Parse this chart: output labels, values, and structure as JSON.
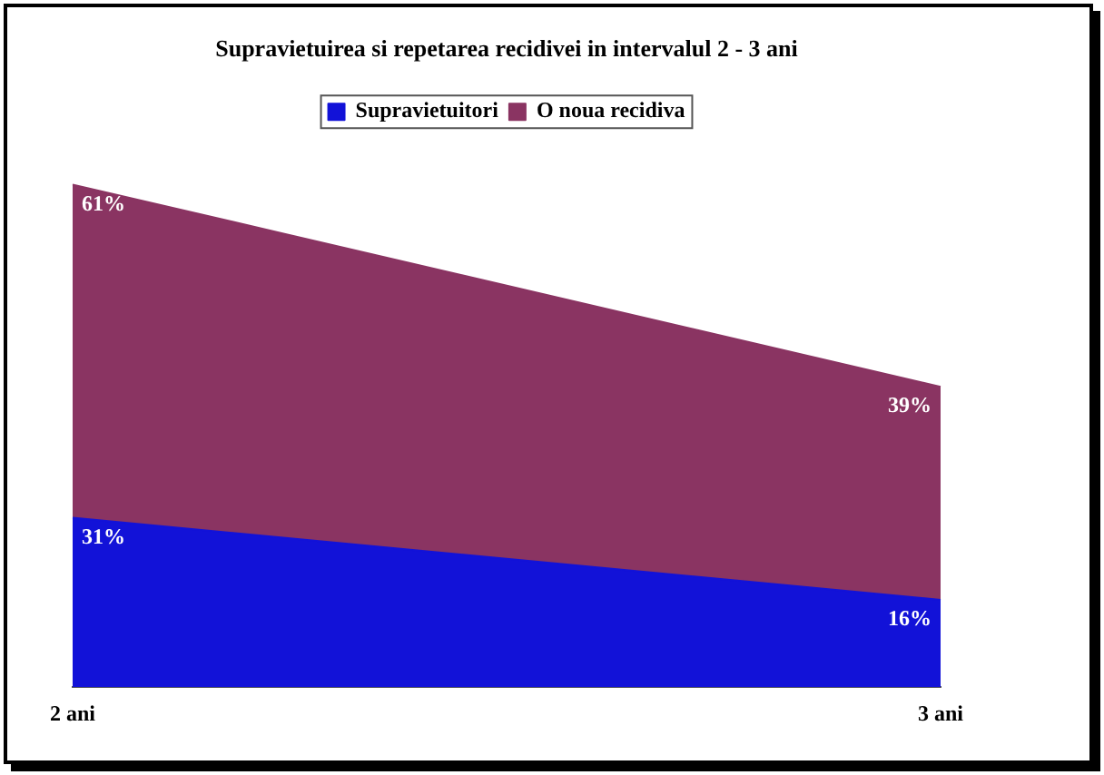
{
  "chart_data": {
    "type": "area",
    "stacked": true,
    "title": "Supravietuirea si repetarea recidivei in intervalul 2 - 3 ani",
    "categories": [
      "2 ani",
      "3 ani"
    ],
    "series": [
      {
        "name": "Supravietuitori",
        "color": "#1212d8",
        "values": [
          31,
          16
        ],
        "value_labels": [
          "31%",
          "16%"
        ]
      },
      {
        "name": "O noua recidiva",
        "color": "#8a3462",
        "values": [
          61,
          39
        ],
        "value_labels": [
          "61%",
          "39%"
        ]
      }
    ],
    "tick_labels": "x",
    "legend": "top"
  }
}
